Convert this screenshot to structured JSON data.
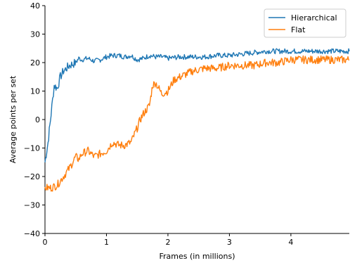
{
  "chart_data": {
    "type": "line",
    "xlabel": "Frames (in millions)",
    "ylabel": "Average points per set",
    "xlim": [
      0,
      4.95
    ],
    "ylim": [
      -40,
      40
    ],
    "xticks": [
      0,
      1,
      2,
      3,
      4
    ],
    "yticks": [
      -40,
      -30,
      -20,
      -10,
      0,
      10,
      20,
      30,
      40
    ],
    "grid": false,
    "legend_position": "top-right",
    "series": [
      {
        "name": "Hierarchical",
        "color": "#1f77b4",
        "x": [
          0,
          0.05,
          0.1,
          0.15,
          0.2,
          0.25,
          0.3,
          0.4,
          0.5,
          0.55,
          0.6,
          0.7,
          0.8,
          0.9,
          1.0,
          1.1,
          1.2,
          1.3,
          1.4,
          1.5,
          1.6,
          1.7,
          1.8,
          1.9,
          2.0,
          2.2,
          2.4,
          2.6,
          2.8,
          3.0,
          3.2,
          3.4,
          3.6,
          3.8,
          4.0,
          4.2,
          4.4,
          4.6,
          4.8,
          4.95
        ],
        "y": [
          -15,
          -8,
          2,
          12,
          11,
          15,
          17,
          19,
          20,
          21.5,
          21,
          21.5,
          20.5,
          21,
          22,
          22.5,
          22.5,
          22,
          22.5,
          21,
          21.5,
          22.5,
          22,
          22,
          21.5,
          22,
          22,
          22,
          22.5,
          22.5,
          23,
          23.5,
          24,
          24,
          24,
          24,
          24,
          24,
          24,
          24
        ]
      },
      {
        "name": "Flat",
        "color": "#ff7f0e",
        "x": [
          0,
          0.1,
          0.2,
          0.3,
          0.4,
          0.5,
          0.55,
          0.6,
          0.7,
          0.8,
          0.9,
          1.0,
          1.1,
          1.2,
          1.3,
          1.4,
          1.5,
          1.55,
          1.6,
          1.7,
          1.75,
          1.8,
          1.9,
          2.0,
          2.1,
          2.2,
          2.3,
          2.4,
          2.6,
          2.8,
          3.0,
          3.2,
          3.4,
          3.6,
          3.8,
          4.0,
          4.2,
          4.4,
          4.6,
          4.8,
          4.95
        ],
        "y": [
          -24,
          -24,
          -23,
          -20,
          -17,
          -13,
          -14,
          -12,
          -11,
          -13,
          -12,
          -11,
          -8,
          -9,
          -9,
          -8,
          -3,
          0,
          2,
          5,
          12,
          13,
          9,
          10,
          14,
          15,
          16,
          17,
          18,
          18,
          19,
          19,
          19,
          20,
          20,
          21,
          21,
          21,
          21,
          21,
          21
        ]
      }
    ]
  }
}
